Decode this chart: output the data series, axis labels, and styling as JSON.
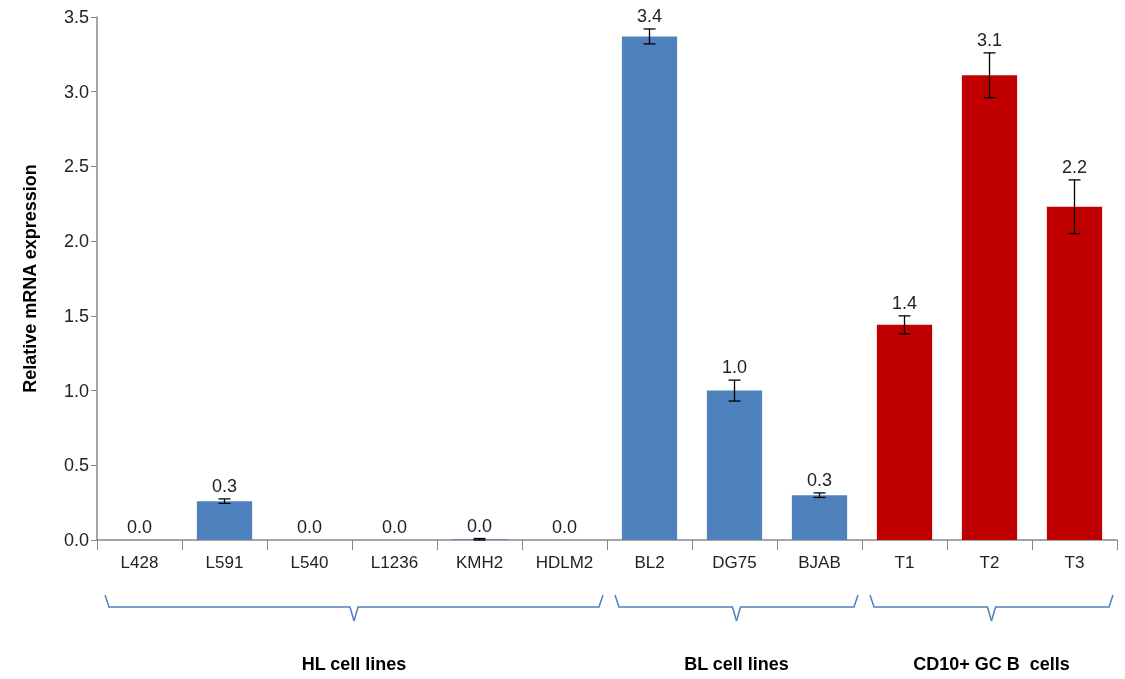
{
  "chart_data": {
    "type": "bar",
    "ylabel": "Relative mRNA expression",
    "categories": [
      "L428",
      "L591",
      "L540",
      "L1236",
      "KMH2",
      "HDLM2",
      "BL2",
      "DG75",
      "BJAB",
      "T1",
      "T2",
      "T3"
    ],
    "values": [
      0,
      0.26,
      0,
      0,
      0.005,
      0,
      3.37,
      1.0,
      0.3,
      1.44,
      3.11,
      2.23
    ],
    "errors": [
      null,
      0.015,
      null,
      null,
      0.005,
      null,
      0.05,
      0.07,
      0.015,
      0.06,
      0.15,
      0.18
    ],
    "value_labels": [
      "0.0",
      "0.3",
      "0.0",
      "0.0",
      "0.0",
      "0.0",
      "3.4",
      "1.0",
      "0.3",
      "1.4",
      "3.1",
      "2.2"
    ],
    "colors": [
      "#4f81bd",
      "#4f81bd",
      "#4f81bd",
      "#4f81bd",
      "#4f81bd",
      "#4f81bd",
      "#4f81bd",
      "#4f81bd",
      "#4f81bd",
      "#c00000",
      "#c00000",
      "#c00000"
    ],
    "ylim": [
      0,
      3.5
    ],
    "yticks": [
      {
        "value": 0,
        "label": "0.0"
      },
      {
        "value": 0.5,
        "label": "0.5"
      },
      {
        "value": 1,
        "label": "1.0"
      },
      {
        "value": 1.5,
        "label": "1.5"
      },
      {
        "value": 2,
        "label": "2.0"
      },
      {
        "value": 2.5,
        "label": "2.5"
      },
      {
        "value": 3,
        "label": "3.0"
      },
      {
        "value": 3.5,
        "label": "3.5"
      }
    ],
    "grid": false,
    "annotations": [
      "HL cell lines",
      "BL cell lines",
      "CD10+ GC B  cells"
    ]
  }
}
